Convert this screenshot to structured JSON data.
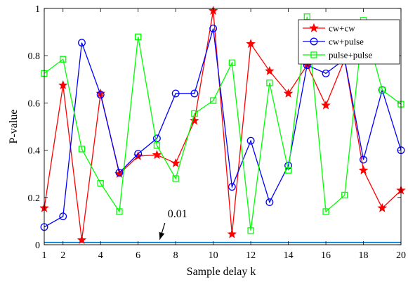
{
  "chart_data": {
    "type": "line",
    "xlabel": "Sample delay k",
    "ylabel": "P-value",
    "xlim": [
      1,
      20
    ],
    "ylim": [
      0,
      1
    ],
    "xticks": [
      1,
      2,
      4,
      6,
      8,
      10,
      12,
      14,
      16,
      18,
      20
    ],
    "yticks": [
      0,
      0.2,
      0.4,
      0.6,
      0.8,
      1
    ],
    "ytick_labels": [
      "0",
      "0.2",
      "0.4",
      "0.6",
      "0.8",
      "1"
    ],
    "grid": false,
    "legend_position": "top-right",
    "x": [
      1,
      2,
      3,
      4,
      5,
      6,
      7,
      8,
      9,
      10,
      11,
      12,
      13,
      14,
      15,
      16,
      17,
      18,
      19,
      20
    ],
    "series": [
      {
        "name": "cw+cw",
        "color": "#ff0000",
        "marker": "star",
        "values": [
          0.155,
          0.675,
          0.02,
          0.64,
          0.3,
          0.375,
          0.38,
          0.345,
          0.525,
          0.99,
          0.045,
          0.85,
          0.735,
          0.64,
          0.76,
          0.59,
          0.785,
          0.315,
          0.155,
          0.23
        ]
      },
      {
        "name": "cw+pulse",
        "color": "#0000ff",
        "marker": "circle",
        "values": [
          0.075,
          0.12,
          0.855,
          0.635,
          0.305,
          0.385,
          0.45,
          0.64,
          0.64,
          0.915,
          0.245,
          0.44,
          0.18,
          0.335,
          0.76,
          0.725,
          0.785,
          0.36,
          0.655,
          0.4
        ]
      },
      {
        "name": "pulse+pulse",
        "color": "#00ff00",
        "marker": "square",
        "values": [
          0.725,
          0.785,
          0.405,
          0.26,
          0.14,
          0.88,
          0.42,
          0.28,
          0.555,
          0.61,
          0.77,
          0.06,
          0.685,
          0.315,
          0.965,
          0.14,
          0.21,
          0.95,
          0.655,
          0.595
        ]
      }
    ],
    "reference_line": {
      "y": 0.01,
      "color": "#0072bd"
    },
    "annotation": {
      "text": "0.01",
      "x": 7.65,
      "y": 0.11,
      "arrow_to_x": 7.15,
      "arrow_to_y": 0.01
    }
  }
}
